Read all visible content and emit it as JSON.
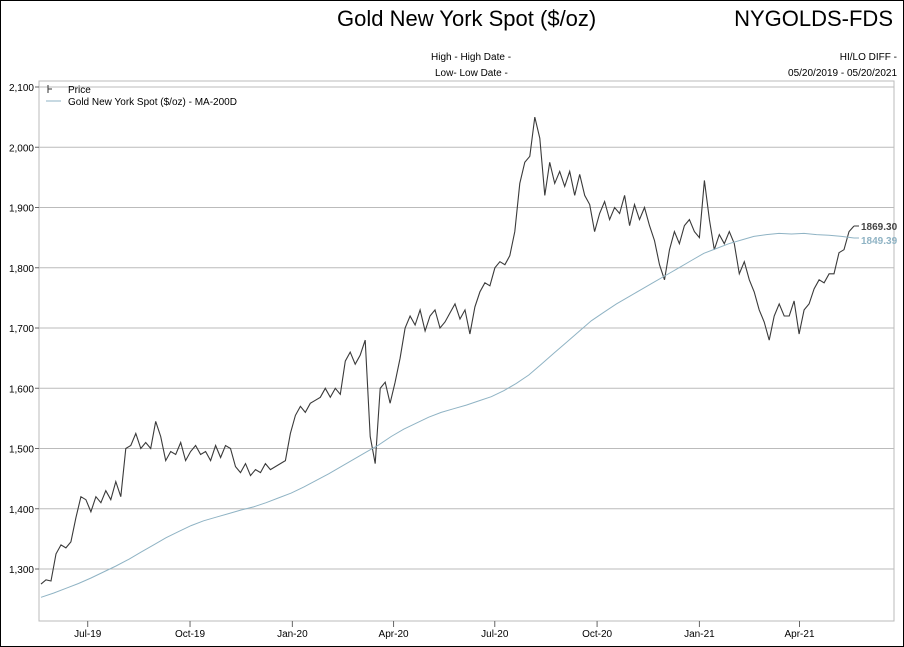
{
  "header": {
    "title": "Gold New York Spot ($/oz)",
    "ticker": "NYGOLDS-FDS",
    "high_label": "High - High Date -",
    "low_label": "Low- Low Date -",
    "hilo_label": "HI/LO DIFF -",
    "date_range": "05/20/2019 - 05/20/2021"
  },
  "chart_data": {
    "type": "line",
    "title": "Gold New York Spot ($/oz)",
    "xlabel": "",
    "ylabel": "",
    "x_range": [
      "2019-05-20",
      "2021-05-20"
    ],
    "x_total_days": 731,
    "ylim": [
      1213,
      2100
    ],
    "grid": true,
    "legend_placement": "top-left",
    "yticks": [
      {
        "value": 1300,
        "label": "1,300"
      },
      {
        "value": 1400,
        "label": "1,400"
      },
      {
        "value": 1500,
        "label": "1,500"
      },
      {
        "value": 1600,
        "label": "1,600"
      },
      {
        "value": 1700,
        "label": "1,700"
      },
      {
        "value": 1800,
        "label": "1,800"
      },
      {
        "value": 1900,
        "label": "1,900"
      },
      {
        "value": 2000,
        "label": "2,000"
      },
      {
        "value": 2100,
        "label": "2,100"
      }
    ],
    "xticks": [
      {
        "day": 42,
        "label": "Jul-19"
      },
      {
        "day": 134,
        "label": "Oct-19"
      },
      {
        "day": 226,
        "label": "Jan-20"
      },
      {
        "day": 317,
        "label": "Apr-20"
      },
      {
        "day": 408,
        "label": "Jul-20"
      },
      {
        "day": 500,
        "label": "Oct-20"
      },
      {
        "day": 592,
        "label": "Jan-21"
      },
      {
        "day": 682,
        "label": "Apr-21"
      }
    ],
    "series": [
      {
        "name": "Price",
        "color": "#3a3a3a",
        "last_label": "1869.30",
        "values": [
          1275,
          1282,
          1280,
          1325,
          1340,
          1335,
          1345,
          1385,
          1420,
          1415,
          1395,
          1420,
          1410,
          1430,
          1415,
          1445,
          1420,
          1500,
          1505,
          1525,
          1500,
          1510,
          1500,
          1545,
          1520,
          1480,
          1495,
          1490,
          1510,
          1480,
          1495,
          1505,
          1490,
          1495,
          1480,
          1505,
          1485,
          1505,
          1500,
          1470,
          1460,
          1475,
          1455,
          1465,
          1460,
          1475,
          1465,
          1470,
          1475,
          1480,
          1525,
          1555,
          1570,
          1560,
          1575,
          1580,
          1585,
          1600,
          1585,
          1600,
          1590,
          1645,
          1660,
          1640,
          1655,
          1680,
          1520,
          1475,
          1600,
          1610,
          1575,
          1610,
          1650,
          1700,
          1720,
          1705,
          1730,
          1695,
          1720,
          1730,
          1700,
          1710,
          1725,
          1740,
          1715,
          1730,
          1690,
          1735,
          1760,
          1775,
          1770,
          1800,
          1810,
          1805,
          1820,
          1860,
          1940,
          1975,
          1985,
          2050,
          2015,
          1920,
          1975,
          1940,
          1960,
          1935,
          1960,
          1920,
          1955,
          1920,
          1905,
          1860,
          1890,
          1910,
          1880,
          1900,
          1890,
          1920,
          1870,
          1905,
          1880,
          1900,
          1870,
          1845,
          1805,
          1780,
          1830,
          1860,
          1840,
          1870,
          1880,
          1860,
          1850,
          1945,
          1880,
          1830,
          1855,
          1840,
          1860,
          1840,
          1790,
          1810,
          1780,
          1760,
          1730,
          1710,
          1680,
          1720,
          1740,
          1720,
          1720,
          1745,
          1690,
          1730,
          1740,
          1765,
          1780,
          1775,
          1790,
          1790,
          1825,
          1830,
          1860,
          1869.3
        ]
      },
      {
        "name": "Gold New York Spot ($/oz) - MA-200D",
        "color": "#8fb3c4",
        "last_label": "1849.39",
        "values": [
          1253,
          1260,
          1268,
          1276,
          1285,
          1295,
          1305,
          1316,
          1328,
          1340,
          1352,
          1362,
          1372,
          1380,
          1386,
          1392,
          1398,
          1403,
          1410,
          1418,
          1426,
          1436,
          1447,
          1458,
          1470,
          1482,
          1494,
          1506,
          1520,
          1532,
          1542,
          1552,
          1560,
          1566,
          1572,
          1579,
          1586,
          1596,
          1608,
          1622,
          1640,
          1658,
          1676,
          1694,
          1712,
          1726,
          1740,
          1752,
          1764,
          1776,
          1788,
          1800,
          1812,
          1824,
          1832,
          1840,
          1846,
          1852,
          1855,
          1857,
          1856,
          1857,
          1855,
          1854,
          1852,
          1849.39
        ]
      }
    ]
  }
}
